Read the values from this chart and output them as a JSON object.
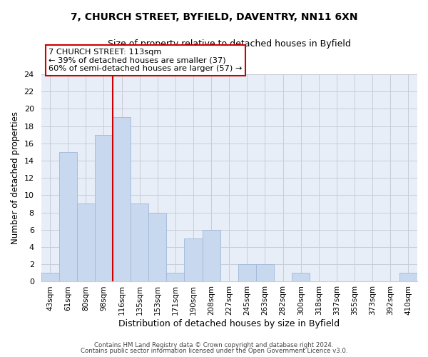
{
  "title": "7, CHURCH STREET, BYFIELD, DAVENTRY, NN11 6XN",
  "subtitle": "Size of property relative to detached houses in Byfield",
  "xlabel": "Distribution of detached houses by size in Byfield",
  "ylabel": "Number of detached properties",
  "bar_labels": [
    "43sqm",
    "61sqm",
    "80sqm",
    "98sqm",
    "116sqm",
    "135sqm",
    "153sqm",
    "171sqm",
    "190sqm",
    "208sqm",
    "227sqm",
    "245sqm",
    "263sqm",
    "282sqm",
    "300sqm",
    "318sqm",
    "337sqm",
    "355sqm",
    "373sqm",
    "392sqm",
    "410sqm"
  ],
  "bar_values": [
    1,
    15,
    9,
    17,
    19,
    9,
    8,
    1,
    5,
    6,
    0,
    2,
    2,
    0,
    1,
    0,
    0,
    0,
    0,
    0,
    1
  ],
  "bar_color": "#c8d8ee",
  "bar_edge_color": "#a0b8d8",
  "vline_index": 4,
  "vline_color": "#cc0000",
  "annotation_text": "7 CHURCH STREET: 113sqm\n← 39% of detached houses are smaller (37)\n60% of semi-detached houses are larger (57) →",
  "annotation_box_color": "#ffffff",
  "annotation_box_edge": "#cc0000",
  "ylim": [
    0,
    24
  ],
  "yticks": [
    0,
    2,
    4,
    6,
    8,
    10,
    12,
    14,
    16,
    18,
    20,
    22,
    24
  ],
  "footer_line1": "Contains HM Land Registry data © Crown copyright and database right 2024.",
  "footer_line2": "Contains public sector information licensed under the Open Government Licence v3.0.",
  "plot_bg_color": "#e8eef8",
  "fig_bg_color": "#ffffff",
  "grid_color": "#c8ccd8"
}
